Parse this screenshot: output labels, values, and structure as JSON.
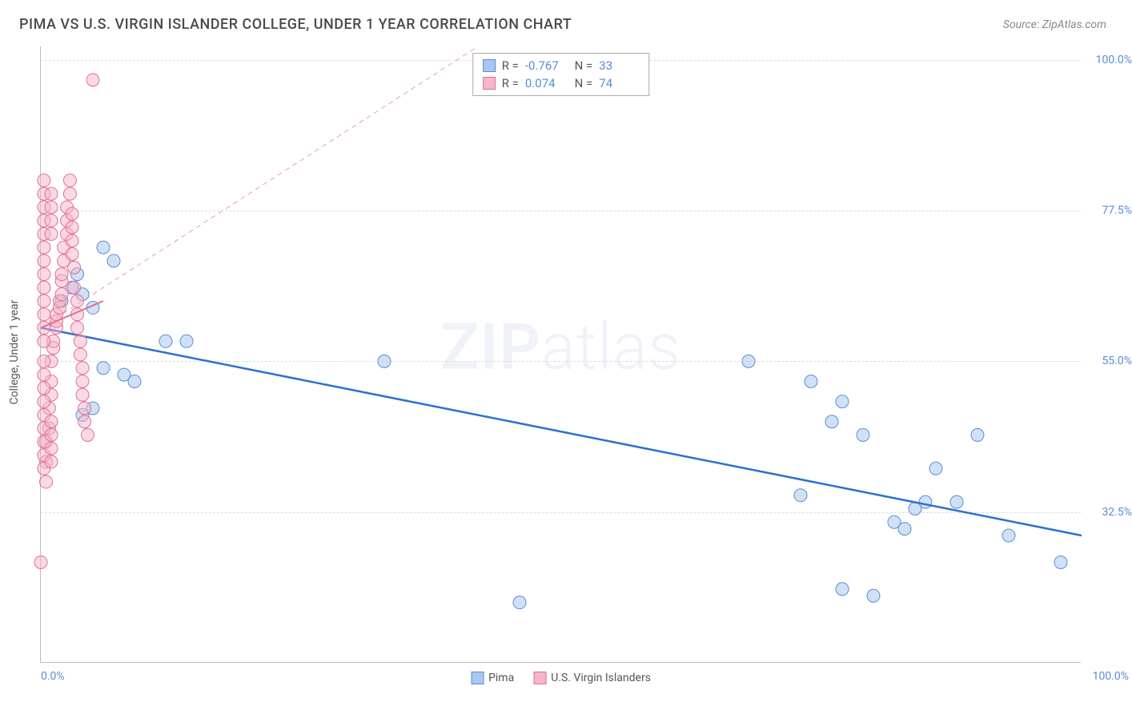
{
  "title": "PIMA VS U.S. VIRGIN ISLANDER COLLEGE, UNDER 1 YEAR CORRELATION CHART",
  "source": "Source: ZipAtlas.com",
  "ylabel": "College, Under 1 year",
  "watermark_zip": "ZIP",
  "watermark_atlas": "atlas",
  "chart": {
    "type": "scatter",
    "xlim": [
      0,
      100
    ],
    "ylim": [
      10,
      102
    ],
    "yticks": [
      {
        "v": 100.0,
        "label": "100.0%"
      },
      {
        "v": 77.5,
        "label": "77.5%"
      },
      {
        "v": 55.0,
        "label": "55.0%"
      },
      {
        "v": 32.5,
        "label": "32.5%"
      }
    ],
    "xticks": [
      {
        "v": 0,
        "label": "0.0%",
        "align": "left"
      },
      {
        "v": 100,
        "label": "100.0%",
        "align": "right"
      }
    ],
    "grid_color": "#dddddd",
    "background_color": "#ffffff",
    "series": [
      {
        "name": "Pima",
        "color_fill": "#a9c8ef",
        "color_stroke": "#5b8dd6",
        "marker_r": 8,
        "fill_opacity": 0.55,
        "trend": {
          "x1": 0,
          "y1": 60,
          "x2": 100,
          "y2": 29,
          "color": "#2f6fd0",
          "width": 2.5,
          "dash": "none"
        },
        "trend_ext": {
          "x1": 0,
          "y1": 60,
          "x2": 42,
          "y2": 102,
          "color": "#e99ab5",
          "width": 1,
          "dash": "6,5"
        },
        "stats": {
          "R": "-0.767",
          "N": "33"
        },
        "points": [
          [
            2,
            64
          ],
          [
            3,
            66
          ],
          [
            3.5,
            68
          ],
          [
            4,
            65
          ],
          [
            5,
            63
          ],
          [
            4,
            47
          ],
          [
            5,
            48
          ],
          [
            6,
            72
          ],
          [
            7,
            70
          ],
          [
            6,
            54
          ],
          [
            8,
            53
          ],
          [
            9,
            52
          ],
          [
            12,
            58
          ],
          [
            14,
            58
          ],
          [
            33,
            55
          ],
          [
            68,
            55
          ],
          [
            74,
            52
          ],
          [
            77,
            49
          ],
          [
            79,
            44
          ],
          [
            82,
            31
          ],
          [
            83,
            30
          ],
          [
            84,
            33
          ],
          [
            85,
            34
          ],
          [
            86,
            39
          ],
          [
            90,
            44
          ],
          [
            93,
            29
          ],
          [
            46,
            19
          ],
          [
            77,
            21
          ],
          [
            98,
            25
          ],
          [
            80,
            20
          ],
          [
            73,
            35
          ],
          [
            88,
            34
          ],
          [
            76,
            46
          ]
        ]
      },
      {
        "name": "U.S. Virgin Islanders",
        "color_fill": "#f4b6c8",
        "color_stroke": "#e36f94",
        "marker_r": 8,
        "fill_opacity": 0.5,
        "trend": {
          "x1": 0,
          "y1": 60,
          "x2": 6,
          "y2": 64,
          "color": "#e36f94",
          "width": 2,
          "dash": "none"
        },
        "stats": {
          "R": "0.074",
          "N": "74"
        },
        "points": [
          [
            0,
            25
          ],
          [
            0.5,
            37
          ],
          [
            0.5,
            40
          ],
          [
            0.5,
            43
          ],
          [
            0.8,
            45
          ],
          [
            0.8,
            48
          ],
          [
            1,
            50
          ],
          [
            1,
            52
          ],
          [
            1,
            55
          ],
          [
            1.2,
            57
          ],
          [
            1.2,
            58
          ],
          [
            1.5,
            60
          ],
          [
            1.5,
            61
          ],
          [
            1.5,
            62
          ],
          [
            1.8,
            63
          ],
          [
            1.8,
            64
          ],
          [
            2,
            65
          ],
          [
            2,
            67
          ],
          [
            2,
            68
          ],
          [
            2.2,
            70
          ],
          [
            2.2,
            72
          ],
          [
            2.5,
            74
          ],
          [
            2.5,
            76
          ],
          [
            2.5,
            78
          ],
          [
            2.8,
            80
          ],
          [
            2.8,
            82
          ],
          [
            3,
            77
          ],
          [
            3,
            75
          ],
          [
            3,
            73
          ],
          [
            3,
            71
          ],
          [
            3.2,
            69
          ],
          [
            3.2,
            66
          ],
          [
            3.5,
            64
          ],
          [
            3.5,
            62
          ],
          [
            3.5,
            60
          ],
          [
            3.8,
            58
          ],
          [
            3.8,
            56
          ],
          [
            4,
            54
          ],
          [
            4,
            52
          ],
          [
            4,
            50
          ],
          [
            4.2,
            48
          ],
          [
            4.2,
            46
          ],
          [
            4.5,
            44
          ],
          [
            0.3,
            60
          ],
          [
            0.3,
            58
          ],
          [
            0.3,
            62
          ],
          [
            0.3,
            64
          ],
          [
            0.3,
            66
          ],
          [
            0.3,
            55
          ],
          [
            0.3,
            53
          ],
          [
            0.3,
            51
          ],
          [
            0.3,
            49
          ],
          [
            0.3,
            47
          ],
          [
            0.3,
            45
          ],
          [
            0.3,
            43
          ],
          [
            0.3,
            41
          ],
          [
            0.3,
            39
          ],
          [
            0.3,
            70
          ],
          [
            0.3,
            72
          ],
          [
            0.3,
            74
          ],
          [
            0.3,
            76
          ],
          [
            0.3,
            78
          ],
          [
            0.3,
            80
          ],
          [
            0.3,
            82
          ],
          [
            0.3,
            68
          ],
          [
            1,
            80
          ],
          [
            1,
            78
          ],
          [
            1,
            76
          ],
          [
            1,
            74
          ],
          [
            1,
            46
          ],
          [
            1,
            44
          ],
          [
            1,
            42
          ],
          [
            1,
            40
          ],
          [
            5,
            97
          ]
        ]
      }
    ]
  },
  "legend": {
    "items": [
      {
        "label": "Pima",
        "fill": "#a9c8ef",
        "stroke": "#5b8dd6"
      },
      {
        "label": "U.S. Virgin Islanders",
        "fill": "#f4b6c8",
        "stroke": "#e36f94"
      }
    ]
  }
}
